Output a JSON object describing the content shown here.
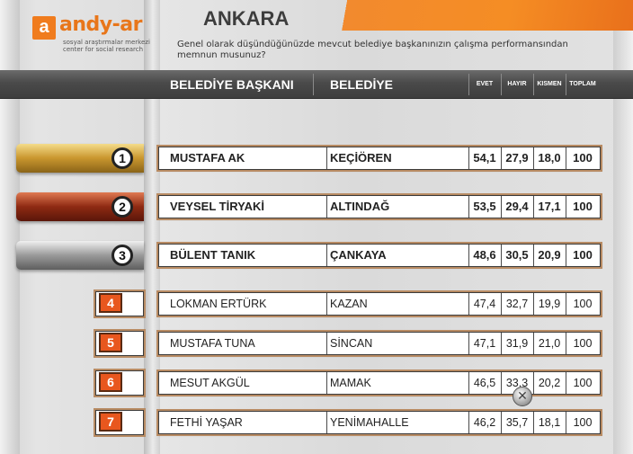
{
  "logo": {
    "mark": "a",
    "name": "andy-ar",
    "sub1": "sosyal araştırmalar merkezi",
    "sub2": "center for social research"
  },
  "title": "ANKARA",
  "question": "Genel olarak düşündüğünüzde mevcut belediye başkanınızın çalışma performansından memnun musunuz?",
  "columns": {
    "mayor": "BELEDİYE BAŞKANI",
    "municipality": "BELEDİYE",
    "yes": "EVET",
    "no": "HAYIR",
    "partly": "KISMEN",
    "total": "TOPLAM"
  },
  "colors": {
    "accent": "#f28a2e",
    "gold": "#c9962e",
    "bronze": "#8e2a12",
    "silver": "#8a8a8a",
    "rank_square": "#e8571e"
  },
  "chart_data": {
    "type": "table",
    "title": "ANKARA",
    "columns": [
      "BELEDİYE BAŞKANI",
      "BELEDİYE",
      "EVET",
      "HAYIR",
      "KISMEN",
      "TOPLAM"
    ],
    "rows": [
      {
        "rank": "1",
        "mayor": "MUSTAFA AK",
        "municipality": "KEÇİÖREN",
        "yes": "54,1",
        "no": "27,9",
        "partly": "18,0",
        "total": "100"
      },
      {
        "rank": "2",
        "mayor": "VEYSEL TİRYAKİ",
        "municipality": "ALTINDAĞ",
        "yes": "53,5",
        "no": "29,4",
        "partly": "17,1",
        "total": "100"
      },
      {
        "rank": "3",
        "mayor": "BÜLENT TANIK",
        "municipality": "ÇANKAYA",
        "yes": "48,6",
        "no": "30,5",
        "partly": "20,9",
        "total": "100"
      },
      {
        "rank": "4",
        "mayor": "LOKMAN ERTÜRK",
        "municipality": "KAZAN",
        "yes": "47,4",
        "no": "32,7",
        "partly": "19,9",
        "total": "100"
      },
      {
        "rank": "5",
        "mayor": "MUSTAFA TUNA",
        "municipality": "SİNCAN",
        "yes": "47,1",
        "no": "31,9",
        "partly": "21,0",
        "total": "100"
      },
      {
        "rank": "6",
        "mayor": "MESUT AKGÜL",
        "municipality": "MAMAK",
        "yes": "46,5",
        "no": "33,3",
        "partly": "20,2",
        "total": "100"
      },
      {
        "rank": "7",
        "mayor": "FETHİ YAŞAR",
        "municipality": "YENİMAHALLE",
        "yes": "46,2",
        "no": "35,7",
        "partly": "18,1",
        "total": "100"
      }
    ]
  },
  "close_icon": {
    "glyph": "✕",
    "icon": "close-icon"
  }
}
